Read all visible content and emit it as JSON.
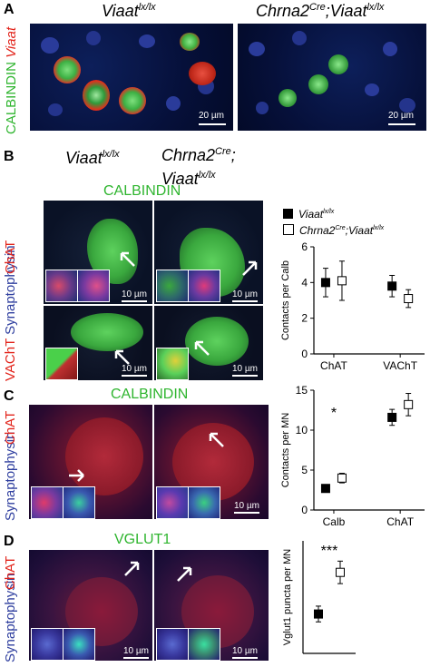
{
  "panels": {
    "a": {
      "letter": "A",
      "genotype_left": "Viaat",
      "genotype_left_sup": "lx/lx",
      "genotype_right_a": "Chrna2",
      "genotype_right_sup_a": "Cre",
      "genotype_right_b": ";Viaat",
      "genotype_right_sup_b": "lx/lx",
      "marker_1": "CALBINDIN",
      "marker_2": "Viaat",
      "scale_left": "20 µm",
      "scale_right": "20 µm"
    },
    "b": {
      "letter": "B",
      "genotype_left": "Viaat",
      "genotype_left_sup": "lx/lx",
      "genotype_right_line1": "Chrna2",
      "genotype_right_line1_sup": "Cre",
      "genotype_right_line1_end": ";",
      "genotype_right_line2": "Viaat",
      "genotype_right_line2_sup": "lx/lx",
      "marker_top": "CALBINDIN",
      "side_a": "ChAT",
      "side_b": "VAChT",
      "side_c": "Synaptophysin",
      "scale": "10 µm",
      "legend_ctrl": "Viaat",
      "legend_ctrl_sup": "lx/lx",
      "legend_ko": "Chrna2",
      "legend_ko_sup1": "Cre",
      "legend_ko_mid": ";Viaat",
      "legend_ko_sup2": "lx/lx"
    },
    "c": {
      "letter": "C",
      "marker_top": "CALBINDIN",
      "side_a": "ChAT",
      "side_b": "Synaptophysin",
      "scale": "10 µm"
    },
    "d": {
      "letter": "D",
      "marker_top": "VGLUT1",
      "side_a": "ChAT",
      "side_b": "Synaptophysin",
      "scale": "10 µm"
    }
  },
  "colors": {
    "green": "#2fb52f",
    "red": "#e2231a",
    "blue": "#2f3f9f",
    "control_marker": "#000000",
    "ko_marker": "#ffffff"
  },
  "chart_data": [
    {
      "type": "scatter",
      "panel": "B",
      "categories": [
        "ChAT",
        "VAChT"
      ],
      "series": [
        {
          "name": "Viaat lx/lx",
          "values": [
            4.0,
            3.8
          ],
          "errors": [
            0.8,
            0.6
          ],
          "marker": "filled-square"
        },
        {
          "name": "Chrna2 Cre;Viaat lx/lx",
          "values": [
            4.1,
            3.1
          ],
          "errors": [
            1.1,
            0.5
          ],
          "marker": "open-square"
        }
      ],
      "ylabel": "Contacts per Calb",
      "ylim": [
        0,
        6
      ],
      "yticks": [
        0,
        2,
        4,
        6
      ]
    },
    {
      "type": "scatter",
      "panel": "C",
      "categories": [
        "Calb",
        "ChAT"
      ],
      "series": [
        {
          "name": "Viaat lx/lx",
          "values": [
            2.7,
            11.6
          ],
          "errors": [
            0.4,
            1.0
          ],
          "marker": "filled-square"
        },
        {
          "name": "Chrna2 Cre;Viaat lx/lx",
          "values": [
            4.0,
            13.2
          ],
          "errors": [
            0.6,
            1.4
          ],
          "marker": "open-square"
        }
      ],
      "ylabel": "Contacts per MN",
      "ylim": [
        0,
        15
      ],
      "yticks": [
        0,
        5,
        10,
        15
      ],
      "annotation": "*"
    },
    {
      "type": "scatter",
      "panel": "D",
      "categories": [
        ""
      ],
      "series": [
        {
          "name": "Viaat lx/lx",
          "values": [
            3.5
          ],
          "errors": [
            0.7
          ],
          "marker": "filled-square"
        },
        {
          "name": "Chrna2 Cre;Viaat lx/lx",
          "values": [
            7.2
          ],
          "errors": [
            1.0
          ],
          "marker": "open-square"
        }
      ],
      "ylabel": "Vglut1 puncta per MN",
      "ylim": [
        0,
        10
      ],
      "annotation": "***"
    }
  ]
}
